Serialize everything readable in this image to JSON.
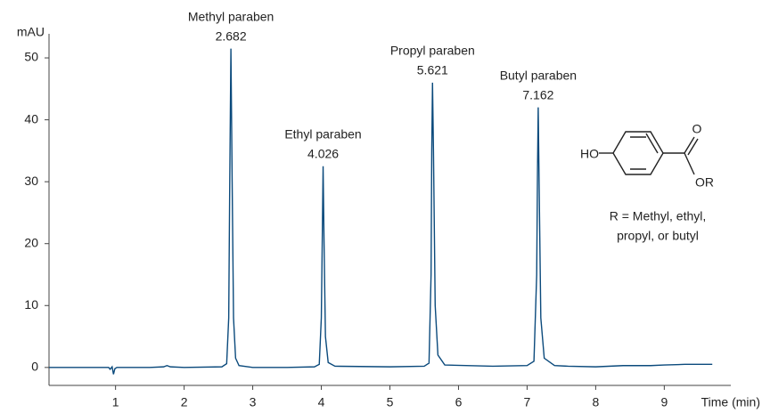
{
  "chart_data": {
    "type": "line",
    "y_label": "mAU",
    "x_label": "Time (min)",
    "xlim": [
      0.03,
      9.97
    ],
    "ylim": [
      -2.9,
      53.6
    ],
    "xticks": [
      1,
      2,
      3,
      4,
      5,
      6,
      7,
      8,
      9
    ],
    "yticks": [
      0,
      10,
      20,
      30,
      40,
      50
    ],
    "grid": false,
    "color": "#0b4a7c",
    "x": [
      0.03,
      0.5,
      0.9,
      0.92,
      0.95,
      0.97,
      0.99,
      1.02,
      1.5,
      1.7,
      1.75,
      1.8,
      2.0,
      2.55,
      2.62,
      2.65,
      2.665,
      2.682,
      2.7,
      2.72,
      2.75,
      2.8,
      3.0,
      3.5,
      3.9,
      3.97,
      4.0,
      4.013,
      4.026,
      4.04,
      4.06,
      4.1,
      4.2,
      5.0,
      5.5,
      5.57,
      5.6,
      5.61,
      5.621,
      5.635,
      5.66,
      5.7,
      5.8,
      6.5,
      7.0,
      7.1,
      7.14,
      7.152,
      7.162,
      7.175,
      7.2,
      7.25,
      7.4,
      7.6,
      8.0,
      8.4,
      8.8,
      9.0,
      9.3,
      9.7
    ],
    "values": [
      0,
      0,
      0,
      -0.3,
      0.1,
      -1.1,
      -0.2,
      0,
      0,
      0.1,
      0.3,
      0.1,
      0,
      0.1,
      0.6,
      8,
      30,
      51.5,
      30,
      8,
      1.5,
      0.3,
      0,
      0,
      0.1,
      0.5,
      8,
      20,
      32.5,
      20,
      5,
      0.8,
      0.2,
      0.1,
      0.2,
      0.7,
      15,
      35,
      46,
      35,
      10,
      2,
      0.4,
      0.2,
      0.3,
      1,
      15,
      32,
      42,
      30,
      8,
      1.5,
      0.3,
      0.2,
      0.1,
      0.3,
      0.3,
      0.4,
      0.5,
      0.5
    ],
    "annotations": [
      {
        "label": "Methyl paraben",
        "x": 2.682
      },
      {
        "label": "Ethyl paraben",
        "x": 4.026
      },
      {
        "label": "Propyl paraben",
        "x": 5.621
      },
      {
        "label": "Butyl paraben",
        "x": 7.162
      }
    ],
    "structure": {
      "hydroxyl": "HO",
      "carbonyl_o": "O",
      "ester": "OR",
      "caption": [
        "R = Methyl, ethyl,",
        "propyl, or butyl"
      ]
    }
  }
}
